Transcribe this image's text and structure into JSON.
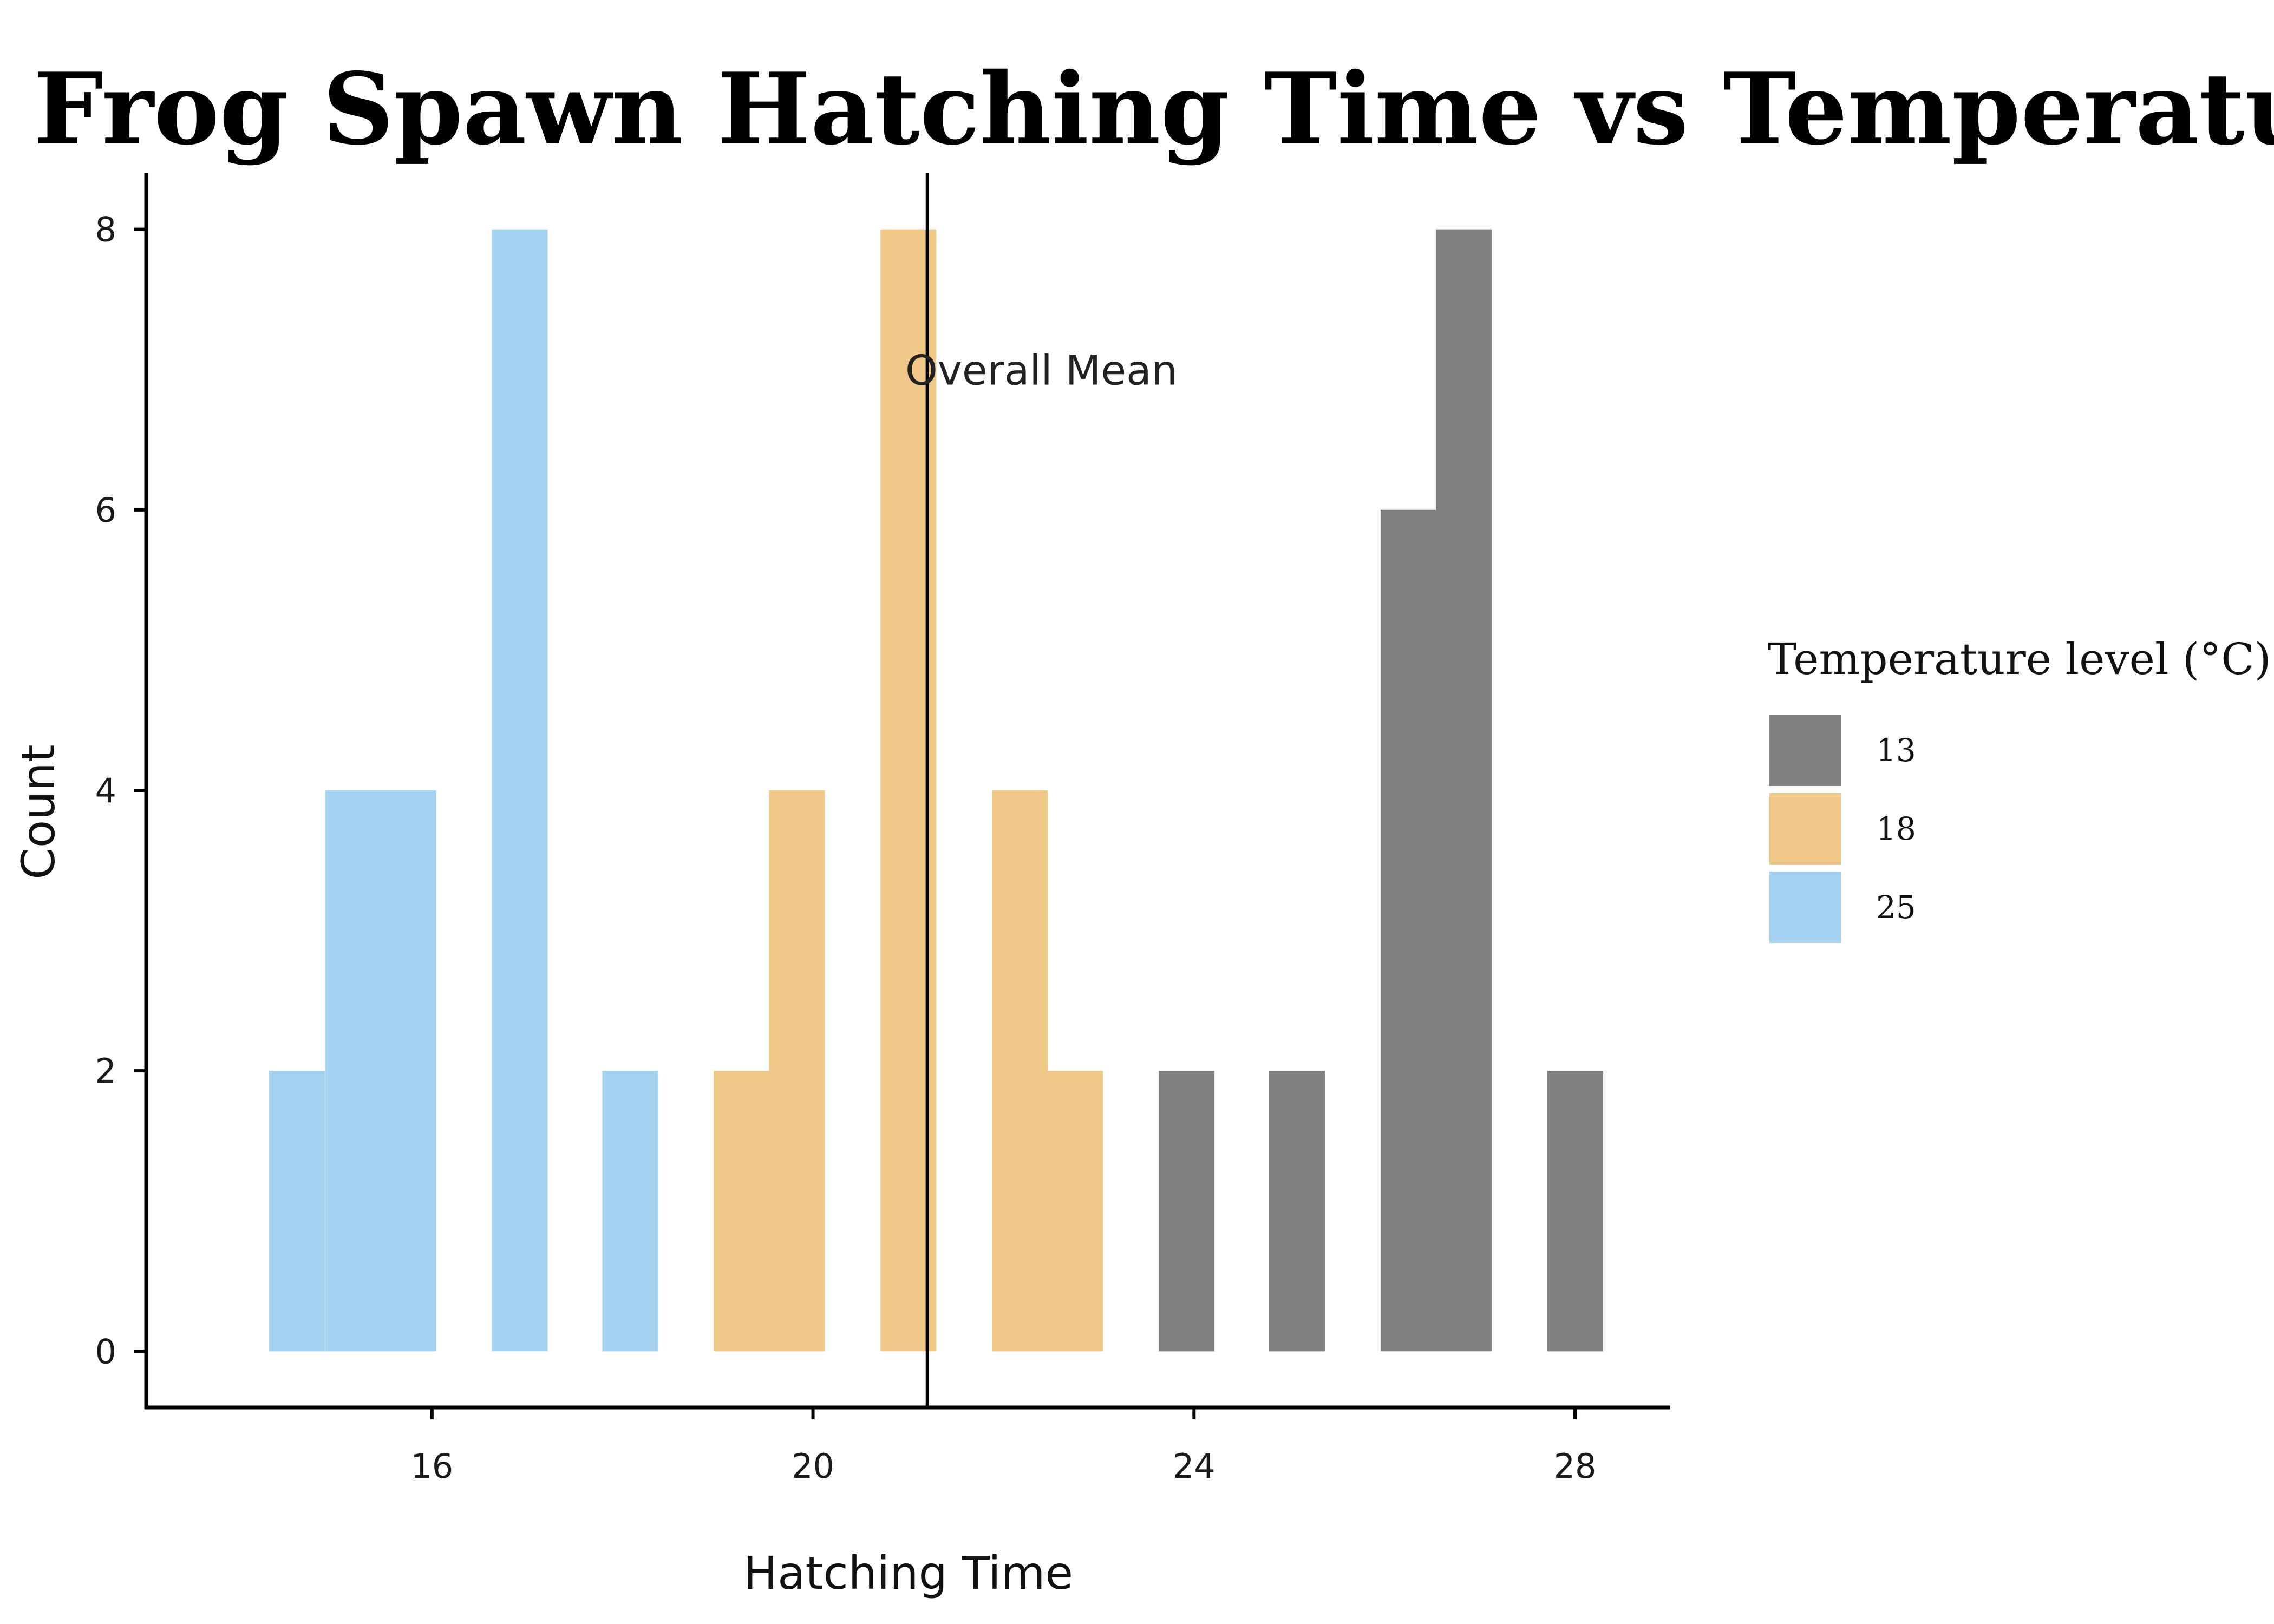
{
  "chart_data": {
    "type": "bar",
    "title": "Frog Spawn Hatching Time vs Temperature",
    "xlabel": "Hatching Time",
    "ylabel": "Count",
    "xlim": [
      13.0,
      29.0
    ],
    "ylim": [
      -0.4,
      8.4
    ],
    "x_ticks": [
      16,
      20,
      24,
      28
    ],
    "y_ticks": [
      0,
      2,
      4,
      6,
      8
    ],
    "bin_width": 0.583,
    "grid": false,
    "legend_position": "right",
    "legend_title": "Temperature level (°C)",
    "series": [
      {
        "name": "13",
        "color": "#808080",
        "bins": [
          {
            "x": 23.92,
            "count": 2
          },
          {
            "x": 25.08,
            "count": 2
          },
          {
            "x": 26.25,
            "count": 6
          },
          {
            "x": 26.83,
            "count": 8
          },
          {
            "x": 28.0,
            "count": 2
          }
        ]
      },
      {
        "name": "18",
        "color": "#EFC786",
        "bins": [
          {
            "x": 19.25,
            "count": 2
          },
          {
            "x": 19.83,
            "count": 4
          },
          {
            "x": 21.0,
            "count": 8
          },
          {
            "x": 22.17,
            "count": 4
          },
          {
            "x": 22.75,
            "count": 2
          }
        ]
      },
      {
        "name": "25",
        "color": "#A6D2F1",
        "bins": [
          {
            "x": 14.58,
            "count": 2
          },
          {
            "x": 15.17,
            "count": 4
          },
          {
            "x": 15.75,
            "count": 4
          },
          {
            "x": 16.92,
            "count": 8
          },
          {
            "x": 18.08,
            "count": 2
          }
        ]
      }
    ],
    "mean_line": {
      "x": 21.2
    },
    "annotation": {
      "text": "Overall Mean",
      "x": 22.0,
      "y": 7.0
    }
  }
}
